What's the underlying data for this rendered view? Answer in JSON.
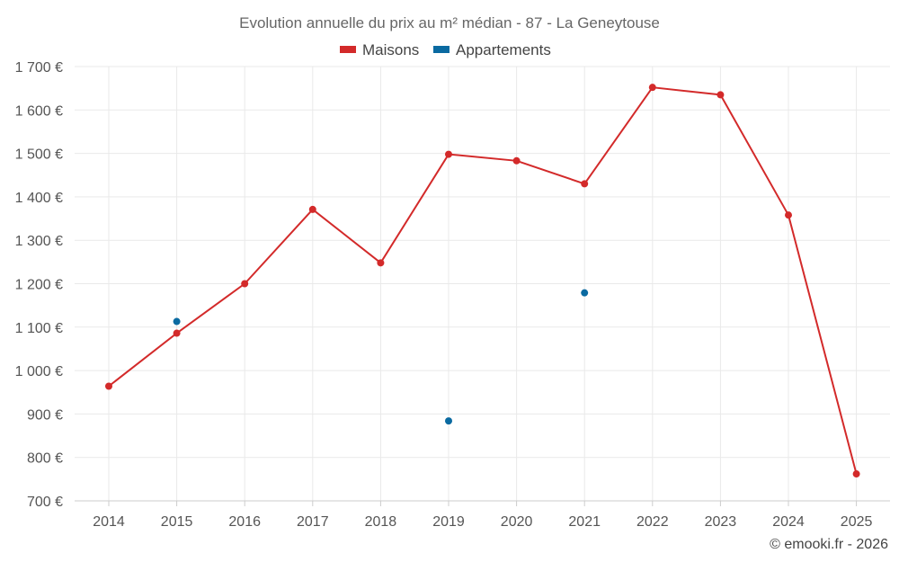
{
  "chart_data": {
    "type": "line",
    "title": "Evolution annuelle du prix au m² médian - 87 - La Geneytouse",
    "categories": [
      "2014",
      "2015",
      "2016",
      "2017",
      "2018",
      "2019",
      "2020",
      "2021",
      "2022",
      "2023",
      "2024",
      "2025"
    ],
    "ylim": [
      700,
      1700
    ],
    "yticks": [
      700,
      800,
      900,
      1000,
      1100,
      1200,
      1300,
      1400,
      1500,
      1600,
      1700
    ],
    "ytick_labels": [
      "700 €",
      "800 €",
      "900 €",
      "1 000 €",
      "1 100 €",
      "1 200 €",
      "1 300 €",
      "1 400 €",
      "1 500 €",
      "1 600 €",
      "1 700 €"
    ],
    "grid": true,
    "legend_position": "top-center",
    "series": [
      {
        "name": "Maisons",
        "color": "#d32a2a",
        "mode": "lines+markers",
        "values": [
          964,
          1086,
          1200,
          1371,
          1248,
          1498,
          1483,
          1430,
          1652,
          1635,
          1358,
          762
        ]
      },
      {
        "name": "Appartements",
        "color": "#0a6aa1",
        "mode": "markers",
        "values": [
          null,
          1113,
          null,
          null,
          null,
          884,
          null,
          1179,
          null,
          null,
          null,
          null
        ]
      }
    ]
  },
  "credit": "© emooki.fr - 2026"
}
